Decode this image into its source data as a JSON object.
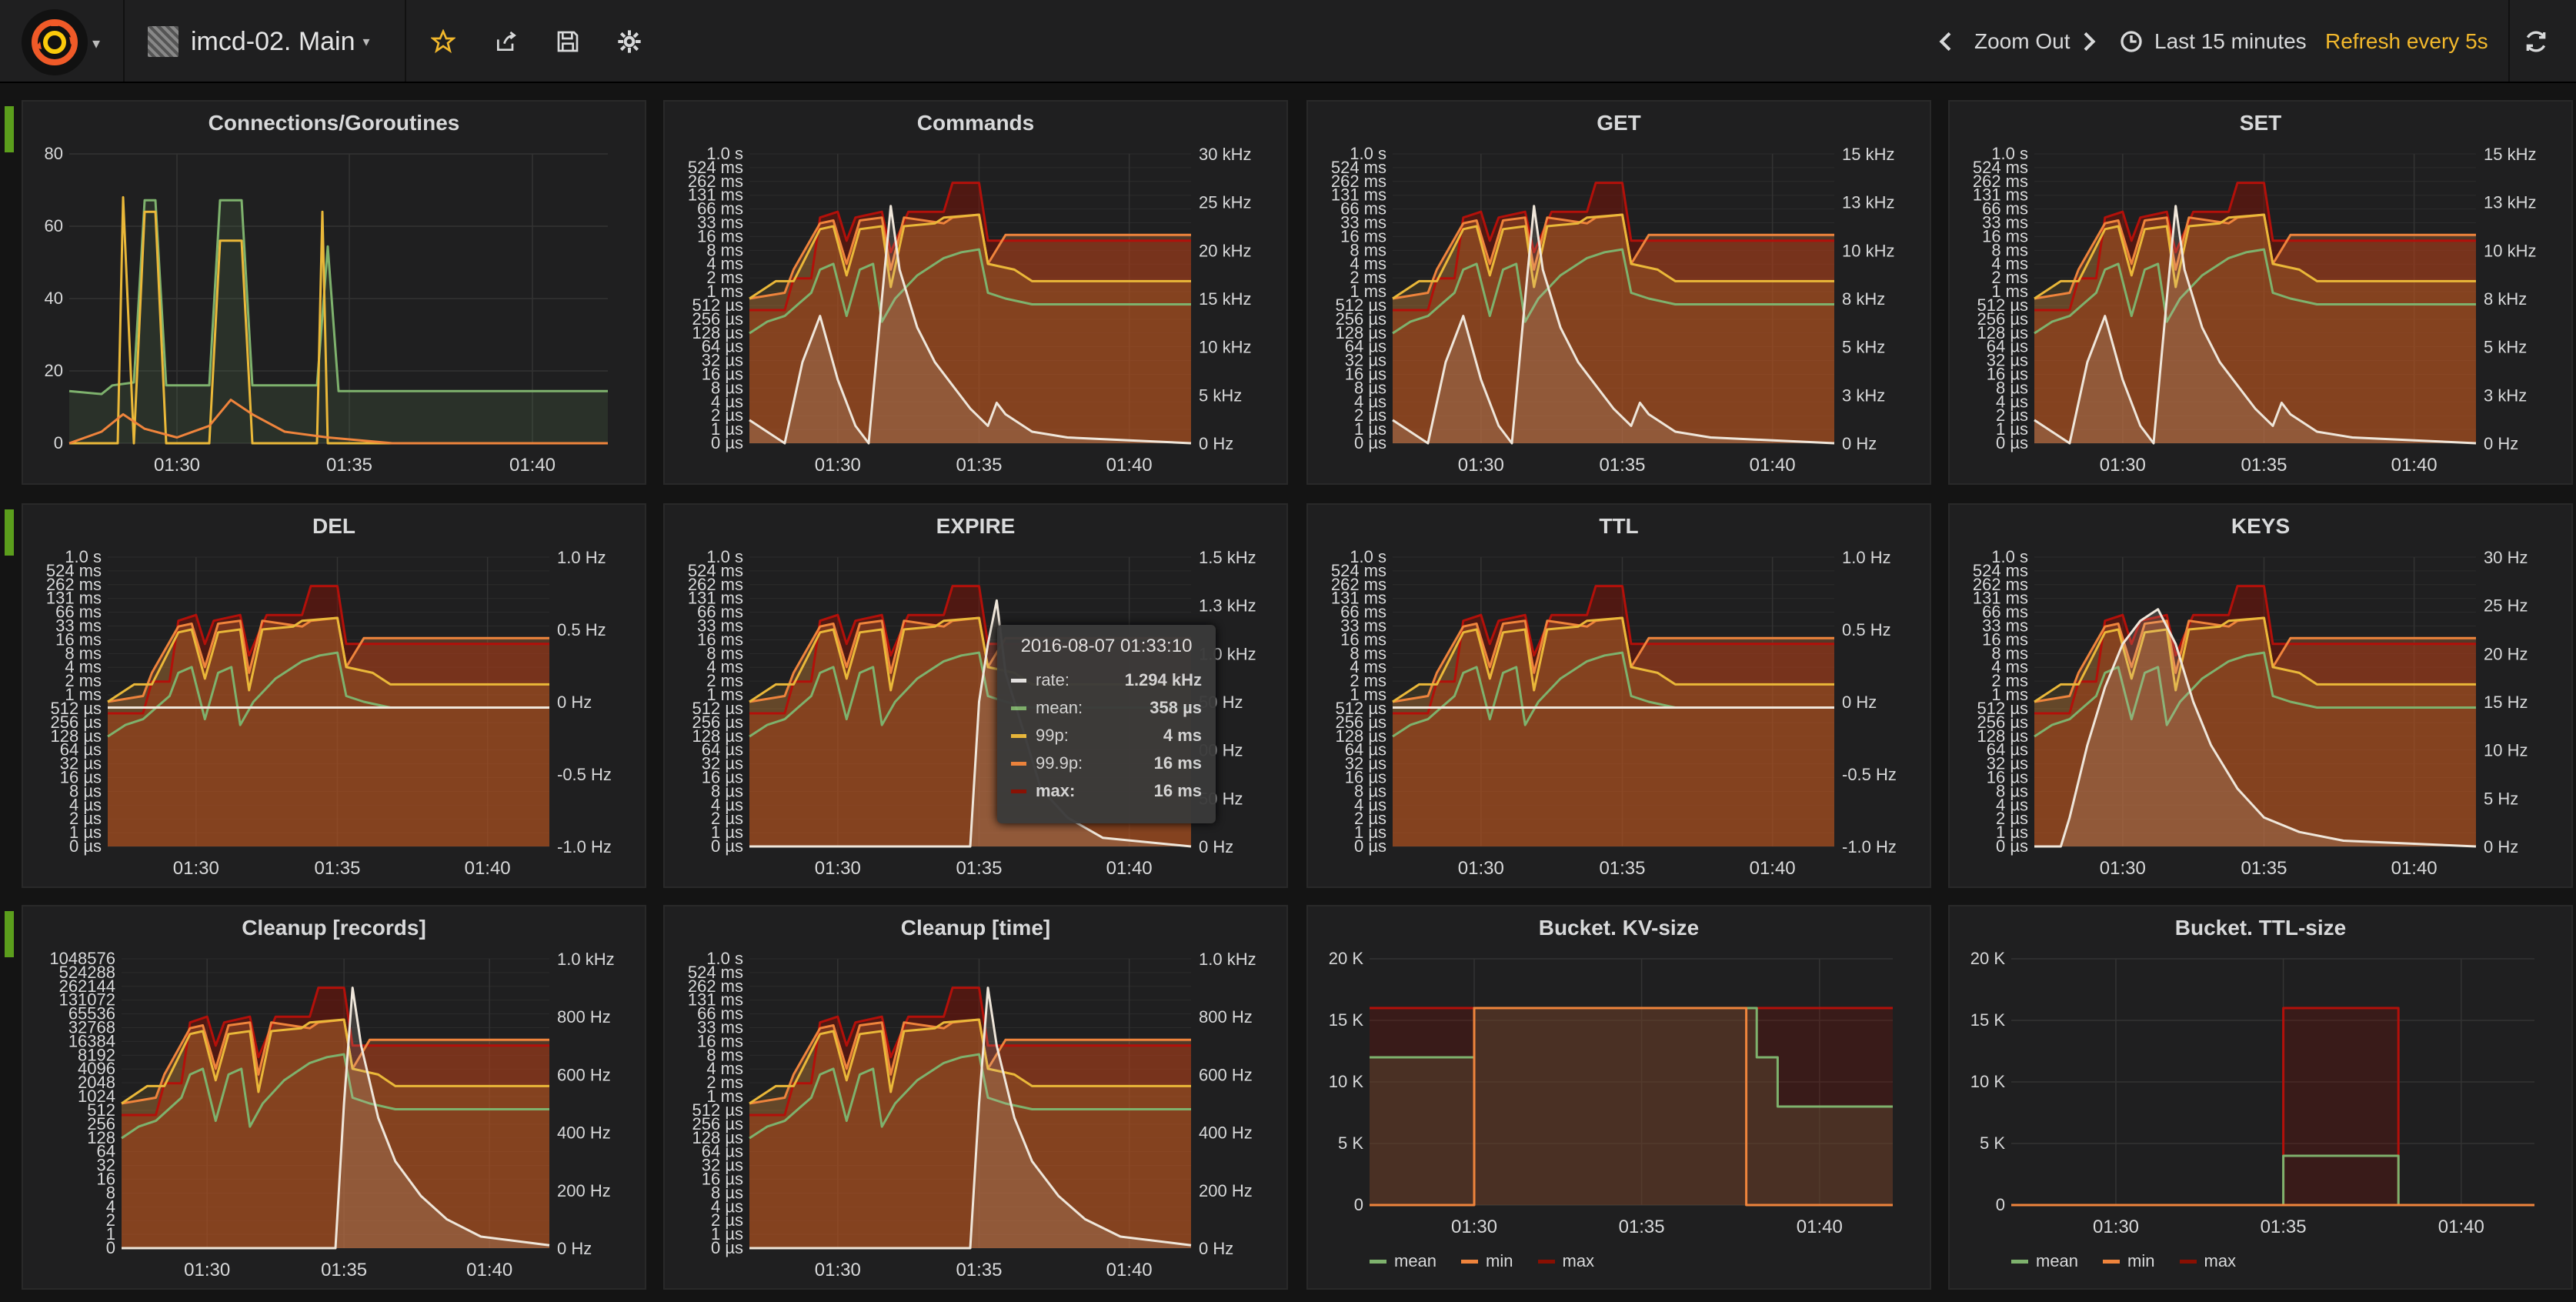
{
  "navbar": {
    "dashboard_title": "imcd-02. Main",
    "zoom_out": "Zoom Out",
    "time_range": "Last 15 minutes",
    "refresh": "Refresh every 5s",
    "icons": [
      "grafana-logo-icon",
      "dashboard-grid-icon",
      "star-icon",
      "share-icon",
      "save-icon",
      "settings-gear-icon",
      "chevron-left-icon",
      "chevron-right-icon",
      "clock-icon",
      "refresh-icon"
    ]
  },
  "colors": {
    "green": "#7eb26d",
    "yellow": "#eab839",
    "orange": "#ef843c",
    "red": "#890f02",
    "white": "#e6e6e6",
    "accent": "#f2b82c"
  },
  "x_ticks": [
    "01:30",
    "01:35",
    "01:40"
  ],
  "latency_ticks": [
    "1.0 s",
    "524 ms",
    "262 ms",
    "131 ms",
    "66 ms",
    "33 ms",
    "16 ms",
    "8 ms",
    "4 ms",
    "2 ms",
    "1 ms",
    "512 µs",
    "256 µs",
    "128 µs",
    "64 µs",
    "32 µs",
    "16 µs",
    "8 µs",
    "4 µs",
    "2 µs",
    "1 µs",
    "0 µs"
  ],
  "panels": [
    {
      "title": "Connections/Goroutines",
      "kind": "conn",
      "yl": [
        "80",
        "60",
        "40",
        "20",
        "0"
      ]
    },
    {
      "title": "Commands",
      "kind": "lat",
      "yr": [
        "30 kHz",
        "25 kHz",
        "20 kHz",
        "15 kHz",
        "10 kHz",
        "5 kHz",
        "0 Hz"
      ]
    },
    {
      "title": "GET",
      "kind": "lat",
      "yr": [
        "15 kHz",
        "13 kHz",
        "10 kHz",
        "8 kHz",
        "5 kHz",
        "3 kHz",
        "0 Hz"
      ]
    },
    {
      "title": "SET",
      "kind": "lat",
      "yr": [
        "15 kHz",
        "13 kHz",
        "10 kHz",
        "8 kHz",
        "5 kHz",
        "3 kHz",
        "0 Hz"
      ]
    },
    {
      "title": "DEL",
      "kind": "lat0",
      "yr": [
        "1.0 Hz",
        "0.5 Hz",
        "0 Hz",
        "-0.5 Hz",
        "-1.0 Hz"
      ]
    },
    {
      "title": "EXPIRE",
      "kind": "latexp",
      "yr": [
        "1.5 kHz",
        "1.3 kHz",
        "1.0 kHz",
        "50 Hz",
        "00 Hz",
        "50 Hz",
        "0 Hz"
      ]
    },
    {
      "title": "TTL",
      "kind": "lat0",
      "yr": [
        "1.0 Hz",
        "0.5 Hz",
        "0 Hz",
        "-0.5 Hz",
        "-1.0 Hz"
      ]
    },
    {
      "title": "KEYS",
      "kind": "latkeys",
      "yr": [
        "30 Hz",
        "25 Hz",
        "20 Hz",
        "15 Hz",
        "10 Hz",
        "5 Hz",
        "0 Hz"
      ]
    },
    {
      "title": "Cleanup [records]",
      "kind": "cleanrec",
      "yr": [
        "1.0 kHz",
        "800 Hz",
        "600 Hz",
        "400 Hz",
        "200 Hz",
        "0 Hz"
      ],
      "yl": [
        "1048576",
        "524288",
        "262144",
        "131072",
        "65536",
        "32768",
        "16384",
        "8192",
        "4096",
        "2048",
        "1024",
        "512",
        "256",
        "128",
        "64",
        "32",
        "16",
        "8",
        "4",
        "2",
        "1",
        "0"
      ]
    },
    {
      "title": "Cleanup [time]",
      "kind": "cleantime",
      "yr": [
        "1.0 kHz",
        "800 Hz",
        "600 Hz",
        "400 Hz",
        "200 Hz",
        "0 Hz"
      ]
    },
    {
      "title": "Bucket. KV-size",
      "kind": "bkv",
      "yl": [
        "20 K",
        "15 K",
        "10 K",
        "5 K",
        "0"
      ],
      "legend": [
        "mean",
        "min",
        "max"
      ]
    },
    {
      "title": "Bucket. TTL-size",
      "kind": "bttl",
      "yl": [
        "20 K",
        "15 K",
        "10 K",
        "5 K",
        "0"
      ],
      "legend": [
        "mean",
        "min",
        "max"
      ]
    }
  ],
  "tooltip": {
    "time": "2016-08-07 01:33:10",
    "rows": [
      {
        "name": "rate:",
        "value": "1.294 kHz",
        "color": "#e6e6e6"
      },
      {
        "name": "mean:",
        "value": "358 µs",
        "color": "#7eb26d"
      },
      {
        "name": "99p:",
        "value": "4 ms",
        "color": "#eab839"
      },
      {
        "name": "99.9p:",
        "value": "16 ms",
        "color": "#ef843c"
      },
      {
        "name": "max:",
        "value": "16 ms",
        "color": "#890f02"
      }
    ]
  }
}
